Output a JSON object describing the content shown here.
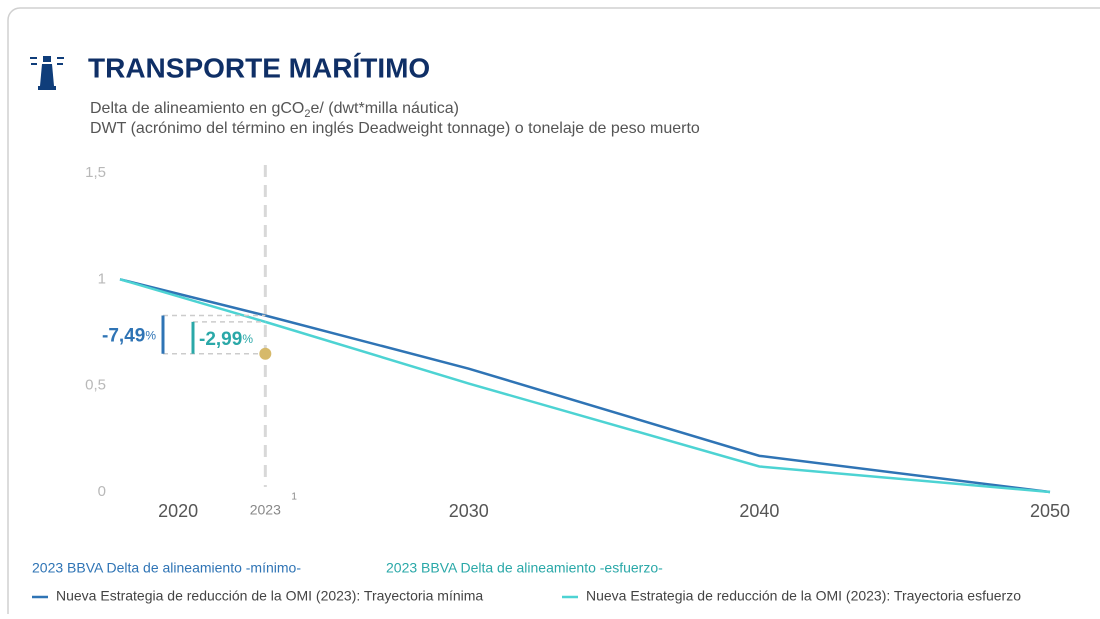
{
  "chart_data": {
    "type": "line",
    "title": "TRANSPORTE MARÍTIMO",
    "subtitle": [
      "Delta de alineamiento en gCO",
      "2",
      "e/ (dwt*milla náutica)"
    ],
    "subtitle2": "DWT (acrónimo del término en inglés Deadweight tonnage) o tonelaje de peso muerto",
    "x": [
      2018,
      2023,
      2030,
      2040,
      2050
    ],
    "xlim": [
      2018,
      2050
    ],
    "xticks": [
      2020,
      2030,
      2040,
      2050
    ],
    "ylim": [
      0,
      1.5
    ],
    "yticks": [
      0,
      {
        "value": 0.5,
        "label": "0,5"
      },
      1,
      {
        "value": 1.5,
        "label": "1,5"
      }
    ],
    "series": [
      {
        "name": "Nueva Estrategia de reducción de la OMI (2023): Trayectoria mínima",
        "color": "#2f74b5",
        "values": [
          1,
          0.83,
          0.58,
          0.17,
          0
        ]
      },
      {
        "name": "Nueva Estrategia de reducción de la OMI (2023): Trayectoria esfuerzo",
        "color": "#4dd3d3",
        "values": [
          1,
          0.8,
          0.51,
          0.12,
          0
        ]
      }
    ],
    "marker": {
      "x": 2023,
      "label": "2023",
      "footnote": "1",
      "value": 0.65,
      "color": "#d6b96a"
    },
    "annotations": [
      {
        "text": "-7,49",
        "unit": "%",
        "legend": "2023 BBVA Delta de alineamiento -mínimo-",
        "color": "#2f74b5"
      },
      {
        "text": "-2,99",
        "unit": "%",
        "legend": "2023 BBVA Delta de alineamiento -esfuerzo-",
        "color": "#2aa8a8"
      }
    ]
  }
}
